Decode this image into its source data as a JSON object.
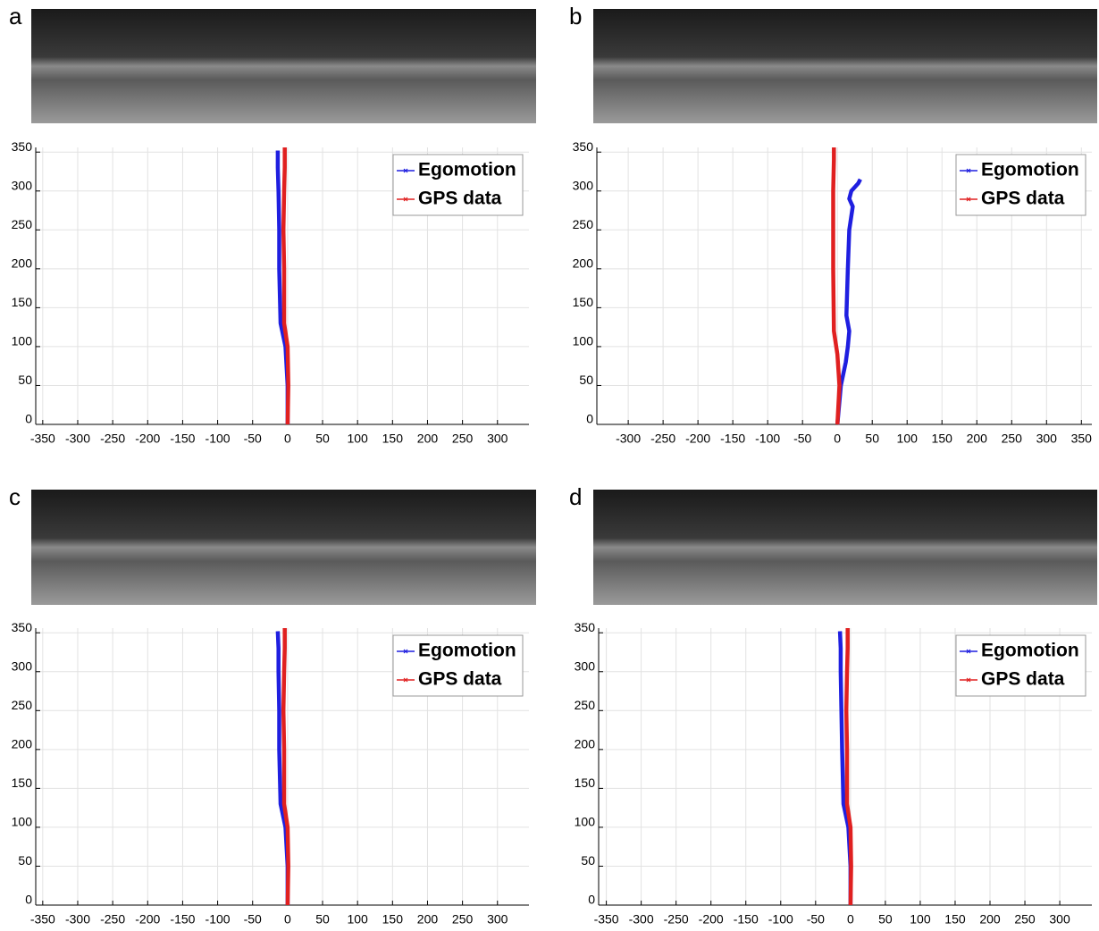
{
  "chart_data": [
    {
      "type": "line",
      "panel": "a",
      "xlim": [
        -360,
        345
      ],
      "ylim": [
        0,
        356
      ],
      "xticks": [
        -350,
        -300,
        -250,
        -200,
        -150,
        -100,
        -50,
        0,
        50,
        100,
        150,
        200,
        250,
        300
      ],
      "yticks": [
        0,
        50,
        100,
        150,
        200,
        250,
        300,
        350
      ],
      "grid": true,
      "legend": "upper right",
      "series": [
        {
          "name": "Egomotion",
          "color": "#1f1fe0",
          "x": [
            0,
            0,
            -3,
            -10,
            -12,
            -12,
            -13,
            -14,
            -14
          ],
          "values": [
            0,
            50,
            100,
            130,
            200,
            250,
            300,
            330,
            352
          ]
        },
        {
          "name": "GPS data",
          "color": "#e02020",
          "x": [
            0,
            1,
            0,
            -5,
            -5,
            -6,
            -5,
            -4,
            -4
          ],
          "values": [
            0,
            50,
            100,
            130,
            200,
            250,
            300,
            330,
            356
          ]
        }
      ]
    },
    {
      "type": "line",
      "panel": "b",
      "xlim": [
        -345,
        365
      ],
      "ylim": [
        0,
        356
      ],
      "xticks": [
        -300,
        -250,
        -200,
        -150,
        -100,
        -50,
        0,
        50,
        100,
        150,
        200,
        250,
        300,
        350
      ],
      "yticks": [
        0,
        50,
        100,
        150,
        200,
        250,
        300,
        350
      ],
      "grid": true,
      "legend": "upper right",
      "series": [
        {
          "name": "Egomotion",
          "color": "#1f1fe0",
          "x": [
            0,
            5,
            12,
            15,
            17,
            13,
            15,
            17,
            22,
            17,
            20,
            30,
            33
          ],
          "values": [
            0,
            50,
            80,
            100,
            120,
            140,
            200,
            250,
            280,
            290,
            300,
            310,
            315
          ]
        },
        {
          "name": "GPS data",
          "color": "#e02020",
          "x": [
            0,
            3,
            0,
            -5,
            -6,
            -6,
            -5,
            -5
          ],
          "values": [
            0,
            50,
            90,
            120,
            200,
            300,
            340,
            356
          ]
        }
      ]
    },
    {
      "type": "line",
      "panel": "c",
      "xlim": [
        -360,
        345
      ],
      "ylim": [
        0,
        356
      ],
      "xticks": [
        -350,
        -300,
        -250,
        -200,
        -150,
        -100,
        -50,
        0,
        50,
        100,
        150,
        200,
        250,
        300
      ],
      "yticks": [
        0,
        50,
        100,
        150,
        200,
        250,
        300,
        350
      ],
      "grid": true,
      "legend": "upper right",
      "series": [
        {
          "name": "Egomotion",
          "color": "#1f1fe0",
          "x": [
            0,
            0,
            -3,
            -10,
            -12,
            -12,
            -13,
            -13,
            -14
          ],
          "values": [
            0,
            50,
            100,
            130,
            200,
            250,
            300,
            330,
            352
          ]
        },
        {
          "name": "GPS data",
          "color": "#e02020",
          "x": [
            0,
            1,
            0,
            -5,
            -5,
            -6,
            -5,
            -4,
            -4
          ],
          "values": [
            0,
            50,
            100,
            130,
            200,
            250,
            300,
            330,
            356
          ]
        }
      ]
    },
    {
      "type": "line",
      "panel": "d",
      "xlim": [
        -361,
        346
      ],
      "ylim": [
        0,
        356
      ],
      "xticks": [
        -350,
        -300,
        -250,
        -200,
        -150,
        -100,
        -50,
        0,
        50,
        100,
        150,
        200,
        250,
        300
      ],
      "yticks": [
        0,
        50,
        100,
        150,
        200,
        250,
        300,
        350
      ],
      "grid": true,
      "legend": "upper right",
      "series": [
        {
          "name": "Egomotion",
          "color": "#1f1fe0",
          "x": [
            0,
            0,
            -3,
            -10,
            -12,
            -13,
            -14,
            -14,
            -15
          ],
          "values": [
            0,
            50,
            100,
            130,
            200,
            250,
            300,
            330,
            352
          ]
        },
        {
          "name": "GPS data",
          "color": "#e02020",
          "x": [
            0,
            1,
            0,
            -5,
            -5,
            -6,
            -5,
            -4,
            -4
          ],
          "values": [
            0,
            50,
            100,
            130,
            200,
            250,
            300,
            330,
            356
          ]
        }
      ]
    }
  ]
}
